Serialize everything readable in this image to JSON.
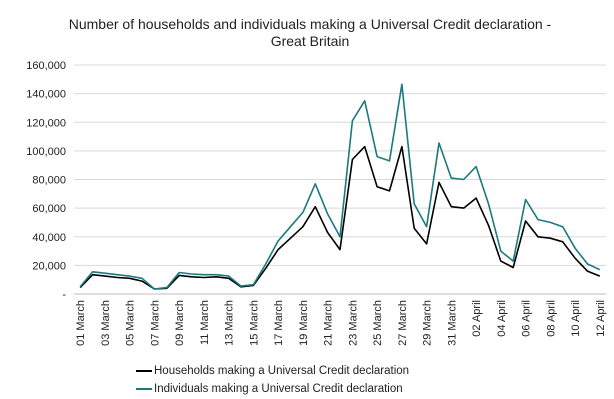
{
  "chart_data": {
    "type": "line",
    "title": "Number of households and individuals making a Universal Credit declaration - Great Britain",
    "xlabel": "",
    "ylabel": "",
    "ylim": [
      0,
      160000
    ],
    "y_ticks": [
      0,
      20000,
      40000,
      60000,
      80000,
      100000,
      120000,
      140000,
      160000
    ],
    "y_tick_labels": [
      "-",
      "20,000",
      "40,000",
      "60,000",
      "80,000",
      "100,000",
      "120,000",
      "140,000",
      "160,000"
    ],
    "grid": "horizontal",
    "legend_position": "bottom",
    "categories": [
      "01 March",
      "02 March",
      "03 March",
      "04 March",
      "05 March",
      "06 March",
      "07 March",
      "08 March",
      "09 March",
      "10 March",
      "11 March",
      "12 March",
      "13 March",
      "14 March",
      "15 March",
      "16 March",
      "17 March",
      "18 March",
      "19 March",
      "20 March",
      "21 March",
      "22 March",
      "23 March",
      "24 March",
      "25 March",
      "26 March",
      "27 March",
      "28 March",
      "29 March",
      "30 March",
      "31 March",
      "01 April",
      "02 April",
      "03 April",
      "04 April",
      "05 April",
      "06 April",
      "07 April",
      "08 April",
      "09 April",
      "10 April",
      "11 April",
      "12 April"
    ],
    "tick_labels": [
      "01 March",
      "03 March",
      "05 March",
      "07 March",
      "09 March",
      "11 March",
      "13 March",
      "15 March",
      "17 March",
      "19 March",
      "21 March",
      "23 March",
      "25 March",
      "27 March",
      "29 March",
      "31 March",
      "02 April",
      "04 April",
      "06 April",
      "08 April",
      "10 April",
      "12 April"
    ],
    "series": [
      {
        "name": "Households making a Universal Credit declaration",
        "color": "#000000",
        "values": [
          4500,
          13500,
          12500,
          11500,
          11000,
          9000,
          3500,
          4000,
          13000,
          12000,
          11500,
          12000,
          11000,
          5000,
          6000,
          18000,
          31000,
          39000,
          47000,
          61000,
          43000,
          31000,
          94000,
          103000,
          75000,
          72000,
          103000,
          46000,
          35000,
          78000,
          61000,
          60000,
          67000,
          48000,
          23000,
          18500,
          51000,
          40000,
          39000,
          36500,
          25000,
          16000,
          12500
        ]
      },
      {
        "name": "Individuals making a Universal Credit declaration",
        "color": "#1a7a80",
        "values": [
          5000,
          15500,
          14500,
          13500,
          12500,
          11000,
          3500,
          4500,
          15000,
          14000,
          13500,
          13500,
          12500,
          5500,
          6500,
          21000,
          37000,
          47000,
          57000,
          77000,
          56000,
          40000,
          121000,
          135000,
          96000,
          93000,
          146500,
          63000,
          47000,
          105500,
          81000,
          80000,
          89000,
          63000,
          30000,
          23000,
          66000,
          52000,
          50000,
          47000,
          32000,
          21000,
          17000
        ]
      }
    ]
  }
}
